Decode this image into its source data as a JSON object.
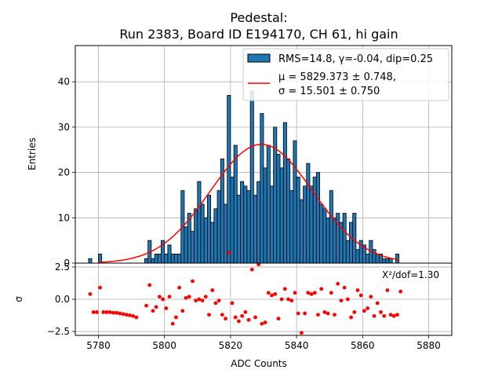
{
  "chart_data": {
    "type": "bar",
    "title_line1": "Pedestal:",
    "title_line2": "Run 2383, Board ID E194170, CH 61, hi gain",
    "xlabel": "ADC Counts",
    "ylabel_top": "Entries",
    "ylabel_bottom": "σ",
    "xlim": [
      5773,
      5887
    ],
    "ylim_top": [
      0,
      48
    ],
    "ylim_bottom": [
      -2.8,
      2.8
    ],
    "x_ticks": [
      5780,
      5800,
      5820,
      5840,
      5860,
      5880
    ],
    "y_ticks_top": [
      0,
      10,
      20,
      30,
      40
    ],
    "y_ticks_bottom": [
      -2.5,
      0.0,
      2.5
    ],
    "grid": true,
    "legend": {
      "position": "top-right",
      "hist_label": "RMS=14.8, γ=-0.04, dip=0.25",
      "fit_label_line1": "μ = 5829.373 ± 0.748,",
      "fit_label_line2": "σ = 15.501 ± 0.750"
    },
    "fit": {
      "mu": 5829.373,
      "sigma": 15.501,
      "amplitude": 26.2,
      "x_range": [
        5780,
        5871
      ]
    },
    "histogram": {
      "bin_width": 1,
      "bins": [
        [
          5777,
          1
        ],
        [
          5780,
          2
        ],
        [
          5794,
          1
        ],
        [
          5795,
          5
        ],
        [
          5796,
          1
        ],
        [
          5797,
          2
        ],
        [
          5798,
          2
        ],
        [
          5799,
          5
        ],
        [
          5800,
          2
        ],
        [
          5801,
          4
        ],
        [
          5802,
          2
        ],
        [
          5803,
          2
        ],
        [
          5804,
          2
        ],
        [
          5805,
          16
        ],
        [
          5806,
          8
        ],
        [
          5807,
          11
        ],
        [
          5808,
          7
        ],
        [
          5809,
          12
        ],
        [
          5810,
          18
        ],
        [
          5811,
          13
        ],
        [
          5812,
          10
        ],
        [
          5813,
          15
        ],
        [
          5814,
          9
        ],
        [
          5815,
          12
        ],
        [
          5816,
          16
        ],
        [
          5817,
          23
        ],
        [
          5818,
          13
        ],
        [
          5819,
          37
        ],
        [
          5820,
          19
        ],
        [
          5821,
          26
        ],
        [
          5822,
          15
        ],
        [
          5823,
          18
        ],
        [
          5824,
          17
        ],
        [
          5825,
          16
        ],
        [
          5826,
          38
        ],
        [
          5827,
          15
        ],
        [
          5828,
          18
        ],
        [
          5829,
          33
        ],
        [
          5830,
          21
        ],
        [
          5831,
          26
        ],
        [
          5832,
          17
        ],
        [
          5833,
          30
        ],
        [
          5834,
          24
        ],
        [
          5835,
          21
        ],
        [
          5836,
          31
        ],
        [
          5837,
          23
        ],
        [
          5838,
          16
        ],
        [
          5839,
          27
        ],
        [
          5840,
          19
        ],
        [
          5841,
          14
        ],
        [
          5842,
          17
        ],
        [
          5843,
          22
        ],
        [
          5844,
          17
        ],
        [
          5845,
          19
        ],
        [
          5846,
          20
        ],
        [
          5847,
          13
        ],
        [
          5848,
          12
        ],
        [
          5849,
          10
        ],
        [
          5850,
          16
        ],
        [
          5851,
          10
        ],
        [
          5852,
          11
        ],
        [
          5853,
          9
        ],
        [
          5854,
          11
        ],
        [
          5855,
          5
        ],
        [
          5856,
          9
        ],
        [
          5857,
          11
        ],
        [
          5858,
          3
        ],
        [
          5859,
          5
        ],
        [
          5860,
          4
        ],
        [
          5861,
          2
        ],
        [
          5862,
          5
        ],
        [
          5863,
          3
        ],
        [
          5864,
          2
        ],
        [
          5865,
          2
        ],
        [
          5866,
          1
        ],
        [
          5867,
          1
        ],
        [
          5868,
          1
        ],
        [
          5870,
          2
        ]
      ]
    },
    "residuals": {
      "annotation": "X²/dof=1.30",
      "points": [
        [
          5777,
          0.4
        ],
        [
          5778,
          -1.0
        ],
        [
          5779,
          -1.0
        ],
        [
          5780,
          0.9
        ],
        [
          5781,
          -1.0
        ],
        [
          5782,
          -1.0
        ],
        [
          5783,
          -1.0
        ],
        [
          5784,
          -1.05
        ],
        [
          5785,
          -1.05
        ],
        [
          5786,
          -1.1
        ],
        [
          5787,
          -1.15
        ],
        [
          5788,
          -1.2
        ],
        [
          5789,
          -1.25
        ],
        [
          5790,
          -1.3
        ],
        [
          5791,
          -1.4
        ],
        [
          5794,
          -0.5
        ],
        [
          5795,
          1.1
        ],
        [
          5796,
          -0.9
        ],
        [
          5797,
          -0.6
        ],
        [
          5798,
          0.2
        ],
        [
          5799,
          0.0
        ],
        [
          5800,
          -0.7
        ],
        [
          5801,
          0.2
        ],
        [
          5802,
          -1.9
        ],
        [
          5803,
          -1.4
        ],
        [
          5804,
          0.9
        ],
        [
          5805,
          -0.9
        ],
        [
          5806,
          0.1
        ],
        [
          5807,
          0.2
        ],
        [
          5808,
          1.4
        ],
        [
          5809,
          -0.1
        ],
        [
          5810,
          0.0
        ],
        [
          5811,
          -0.1
        ],
        [
          5812,
          0.2
        ],
        [
          5813,
          -1.2
        ],
        [
          5814,
          0.7
        ],
        [
          5815,
          -0.3
        ],
        [
          5816,
          -0.1
        ],
        [
          5817,
          -1.2
        ],
        [
          5818,
          -1.5
        ],
        [
          5819,
          3.6
        ],
        [
          5820,
          -0.3
        ],
        [
          5821,
          -1.4
        ],
        [
          5822,
          -1.7
        ],
        [
          5823,
          -1.3
        ],
        [
          5824,
          -1.0
        ],
        [
          5825,
          -1.6
        ],
        [
          5826,
          2.3
        ],
        [
          5827,
          -1.4
        ],
        [
          5828,
          2.7
        ],
        [
          5829,
          -1.9
        ],
        [
          5830,
          -1.8
        ],
        [
          5831,
          0.5
        ],
        [
          5832,
          0.3
        ],
        [
          5833,
          0.4
        ],
        [
          5834,
          -1.5
        ],
        [
          5835,
          0.0
        ],
        [
          5836,
          0.8
        ],
        [
          5837,
          0.0
        ],
        [
          5838,
          -0.1
        ],
        [
          5839,
          0.5
        ],
        [
          5840,
          -1.1
        ],
        [
          5841,
          -2.6
        ],
        [
          5842,
          -1.1
        ],
        [
          5843,
          0.5
        ],
        [
          5844,
          0.4
        ],
        [
          5845,
          0.5
        ],
        [
          5846,
          -1.2
        ],
        [
          5847,
          0.8
        ],
        [
          5848,
          -1.0
        ],
        [
          5849,
          -1.1
        ],
        [
          5850,
          0.5
        ],
        [
          5851,
          -1.2
        ],
        [
          5852,
          1.2
        ],
        [
          5853,
          -0.1
        ],
        [
          5854,
          0.9
        ],
        [
          5855,
          0.0
        ],
        [
          5856,
          -1.4
        ],
        [
          5857,
          -1.0
        ],
        [
          5858,
          0.7
        ],
        [
          5859,
          0.3
        ],
        [
          5860,
          -0.9
        ],
        [
          5861,
          -0.7
        ],
        [
          5862,
          0.2
        ],
        [
          5863,
          -1.3
        ],
        [
          5864,
          -0.3
        ],
        [
          5865,
          -1.0
        ],
        [
          5866,
          -1.3
        ],
        [
          5867,
          0.7
        ],
        [
          5868,
          -1.2
        ],
        [
          5869,
          -1.3
        ],
        [
          5870,
          -1.2
        ],
        [
          5871,
          0.6
        ]
      ]
    },
    "colors": {
      "bar_fill": "#1f77b4",
      "bar_edge": "#000000",
      "fit_line": "#ff0000",
      "residual_marker": "#ff0000",
      "grid": "#b0b0b0"
    }
  }
}
